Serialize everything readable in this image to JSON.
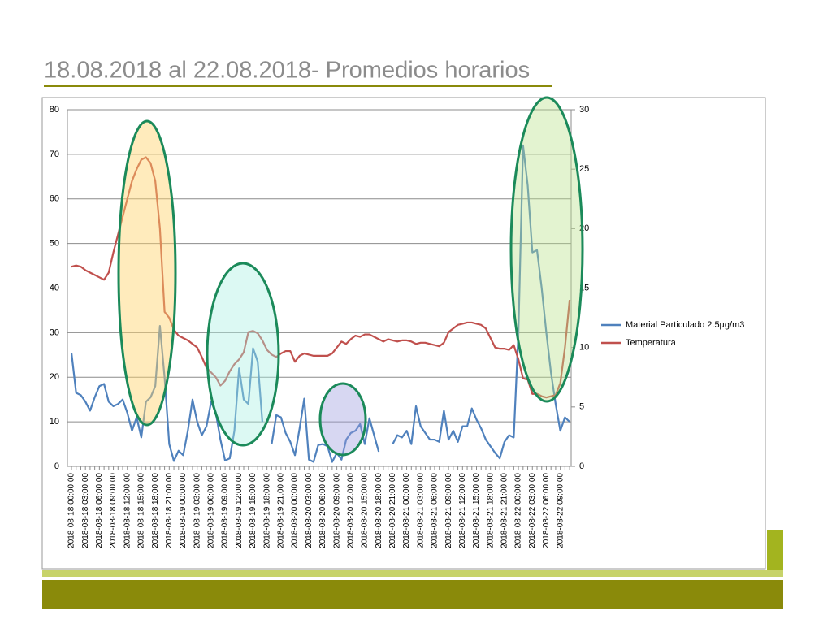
{
  "chart_data": {
    "type": "line",
    "title": "18.08.2018 al 22.08.2018- Promedios horarios",
    "categories": [
      "2018-08-18 00:00:00",
      null,
      null,
      "2018-08-18 03:00:00",
      null,
      null,
      "2018-08-18 06:00:00",
      null,
      null,
      "2018-08-18 09:00:00",
      null,
      null,
      "2018-08-18 12:00:00",
      null,
      null,
      "2018-08-18 15:00:00",
      null,
      null,
      "2018-08-18 18:00:00",
      null,
      null,
      "2018-08-18 21:00:00",
      null,
      null,
      "2018-08-19 00:00:00",
      null,
      null,
      "2018-08-19 03:00:00",
      null,
      null,
      "2018-08-19 06:00:00",
      null,
      null,
      "2018-08-19 09:00:00",
      null,
      null,
      "2018-08-19 12:00:00",
      null,
      null,
      "2018-08-19 15:00:00",
      null,
      null,
      "2018-08-19 18:00:00",
      null,
      null,
      "2018-08-19 21:00:00",
      null,
      null,
      "2018-08-20 00:00:00",
      null,
      null,
      "2018-08-20 03:00:00",
      null,
      null,
      "2018-08-20 06:00:00",
      null,
      null,
      "2018-08-20 09:00:00",
      null,
      null,
      "2018-08-20 12:00:00",
      null,
      null,
      "2018-08-20 15:00:00",
      null,
      null,
      "2018-08-20 18:00:00",
      null,
      null,
      "2018-08-20 21:00:00",
      null,
      null,
      "2018-08-21 00:00:00",
      null,
      null,
      "2018-08-21 03:00:00",
      null,
      null,
      "2018-08-21 06:00:00",
      null,
      null,
      "2018-08-21 09:00:00",
      null,
      null,
      "2018-08-21 12:00:00",
      null,
      null,
      "2018-08-21 15:00:00",
      null,
      null,
      "2018-08-21 18:00:00",
      null,
      null,
      "2018-08-21 21:00:00",
      null,
      null,
      "2018-08-22 00:00:00",
      null,
      null,
      "2018-08-22 03:00:00",
      null,
      null,
      "2018-08-22 06:00:00",
      null,
      null,
      "2018-08-22 09:00:00",
      null,
      null
    ],
    "series": [
      {
        "name": "Material Particulado 2.5µg/m3",
        "color": "#4f81bd",
        "values": [
          25.5,
          16.5,
          16,
          14.5,
          12.5,
          15.5,
          18,
          18.5,
          14.5,
          13.5,
          14,
          15,
          12,
          8,
          11,
          6.5,
          14.5,
          15.5,
          18,
          31.5,
          20,
          5,
          1.2,
          3.5,
          2.5,
          8,
          15,
          10,
          7,
          9,
          14.5,
          12,
          6,
          1.3,
          1.8,
          8,
          22,
          15,
          14,
          26.5,
          23.5,
          10,
          null,
          5,
          11.5,
          11,
          7.5,
          5.5,
          2.5,
          8.5,
          15.2,
          1.5,
          1,
          4.8,
          5,
          4.5,
          1,
          3,
          1.5,
          6,
          7.5,
          8,
          9.5,
          5,
          10.8,
          7,
          3.3,
          null,
          null,
          5,
          7,
          6.5,
          8,
          5,
          13.5,
          9,
          7.5,
          6,
          6,
          5.5,
          12.5,
          6,
          8,
          5.5,
          9,
          9,
          13,
          10.5,
          8.5,
          6,
          4.5,
          3,
          1.8,
          5.5,
          7,
          6.5,
          30,
          72,
          63,
          48,
          48.5,
          40,
          30,
          21,
          14,
          8,
          11,
          10
        ]
      },
      {
        "name": "Temperatura",
        "color": "#c0504d",
        "axis": "y2",
        "values": [
          16.8,
          16.9,
          16.8,
          16.5,
          16.3,
          16.1,
          15.9,
          15.7,
          16.3,
          18,
          19.5,
          21,
          22.5,
          24,
          25,
          25.8,
          26,
          25.5,
          24,
          20,
          13,
          12.5,
          11.5,
          11,
          10.8,
          10.6,
          10.3,
          10,
          9.2,
          8.3,
          7.9,
          7.5,
          6.8,
          7.2,
          8,
          8.6,
          9,
          9.6,
          11.3,
          11.4,
          11.2,
          10.6,
          9.8,
          9.4,
          9.2,
          9.5,
          9.7,
          9.7,
          8.8,
          9.3,
          9.5,
          9.4,
          9.3,
          9.3,
          9.3,
          9.3,
          9.5,
          10,
          10.5,
          10.3,
          10.7,
          11,
          10.9,
          11.1,
          11.1,
          10.9,
          10.7,
          10.5,
          10.7,
          10.6,
          10.5,
          10.6,
          10.6,
          10.5,
          10.3,
          10.4,
          10.4,
          10.3,
          10.2,
          10.1,
          10.4,
          11.3,
          11.6,
          11.9,
          12,
          12.1,
          12.1,
          12,
          11.9,
          11.6,
          10.8,
          10,
          9.9,
          9.9,
          9.8,
          10.2,
          9,
          7.4,
          7.3,
          6.1,
          6.1,
          5.9,
          5.8,
          5.9,
          6,
          7,
          10,
          14
        ]
      }
    ],
    "ylim": [
      0,
      80
    ],
    "yticks": [
      0,
      10,
      20,
      30,
      40,
      50,
      60,
      70,
      80
    ],
    "y2lim": [
      0,
      30
    ],
    "y2ticks": [
      0,
      5,
      10,
      15,
      20,
      25,
      30
    ],
    "grid": true,
    "legend": "right"
  }
}
